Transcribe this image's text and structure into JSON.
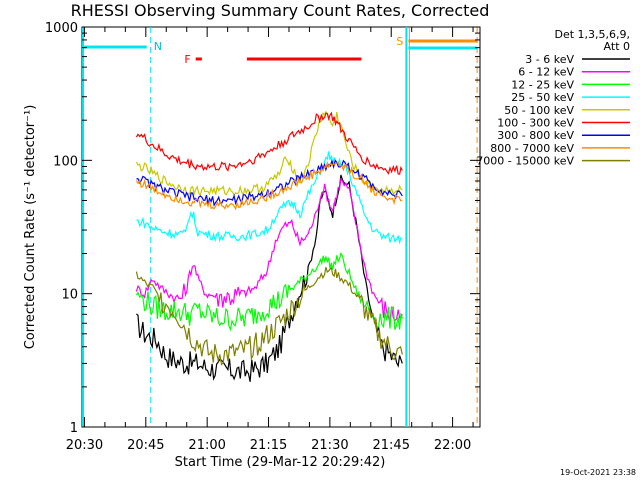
{
  "chart_data": {
    "type": "line",
    "title": "RHESSI Observing Summary Count Rates, Corrected",
    "xlabel": "Start Time (29-Mar-12 20:29:42)",
    "ylabel": "Corrected Count Rate (s⁻¹ detector⁻¹)",
    "y_scale": "log",
    "ylim": [
      1,
      1000
    ],
    "xlim_minutes": [
      -0.3,
      97
    ],
    "x_tick_labels": [
      {
        "t": 0.3,
        "label": "20:30"
      },
      {
        "t": 15.3,
        "label": "20:45"
      },
      {
        "t": 30.3,
        "label": "21:00"
      },
      {
        "t": 45.3,
        "label": "21:15"
      },
      {
        "t": 60.3,
        "label": "21:30"
      },
      {
        "t": 75.3,
        "label": "21:45"
      },
      {
        "t": 90.3,
        "label": "22:00"
      }
    ],
    "y_tick_labels": [
      {
        "v": 1,
        "label": "1"
      },
      {
        "v": 10,
        "label": "10"
      },
      {
        "v": 100,
        "label": "100"
      },
      {
        "v": 1000,
        "label": "1000"
      }
    ],
    "legend_header": [
      "Det 1,3,5,6,9,",
      "Att 0"
    ],
    "series": [
      {
        "name": "3 - 6 keV",
        "color": "#000000",
        "x": [
          13,
          15,
          18,
          20,
          22,
          25,
          28,
          30,
          33,
          35,
          38,
          40,
          42,
          45,
          48,
          50,
          52,
          55,
          57,
          58,
          59,
          60,
          61,
          62,
          63,
          65,
          67,
          69,
          71,
          73,
          75,
          77,
          78
        ],
        "y": [
          6,
          5,
          4.5,
          3.5,
          3.2,
          3,
          3,
          2.8,
          2.7,
          2.7,
          2.6,
          2.6,
          2.7,
          3,
          4,
          6,
          9,
          15,
          28,
          50,
          60,
          48,
          40,
          55,
          72,
          65,
          30,
          12,
          6,
          4,
          3.5,
          3,
          3
        ]
      },
      {
        "name": "6 - 12 keV",
        "color": "#ff00ff",
        "x": [
          13,
          15,
          17,
          19,
          21,
          23,
          25,
          26,
          27,
          28,
          30,
          33,
          36,
          39,
          42,
          45,
          47,
          49,
          51,
          52,
          53,
          55,
          57,
          58,
          59,
          60,
          61,
          62,
          63,
          65,
          67,
          69,
          71,
          73,
          75,
          77,
          78
        ],
        "y": [
          11,
          10,
          13,
          11,
          10,
          9,
          10,
          14,
          17,
          13,
          10,
          9.5,
          9.5,
          10,
          11,
          15,
          25,
          32,
          34,
          28,
          24,
          28,
          40,
          55,
          62,
          50,
          42,
          56,
          70,
          60,
          30,
          15,
          10,
          8,
          7,
          7,
          7
        ]
      },
      {
        "name": "12 - 25 keV",
        "color": "#00ff00",
        "x": [
          13,
          15,
          17,
          20,
          23,
          26,
          28,
          30,
          33,
          36,
          39,
          42,
          45,
          48,
          51,
          54,
          56,
          58,
          59,
          60,
          61,
          62,
          63,
          65,
          67,
          69,
          71,
          73,
          75,
          77,
          78
        ],
        "y": [
          10,
          9,
          8,
          7.5,
          7.5,
          7,
          7.5,
          7,
          6.5,
          6.5,
          6.5,
          7,
          8,
          9,
          11,
          13,
          15,
          17,
          19,
          17,
          16,
          18,
          19,
          14,
          10,
          8,
          7,
          6.5,
          6.5,
          6.5,
          6.5
        ]
      },
      {
        "name": "25 - 50 keV",
        "color": "#00ffff",
        "x": [
          13,
          15,
          17,
          20,
          23,
          25,
          26,
          27,
          28,
          30,
          33,
          36,
          39,
          42,
          45,
          47,
          49,
          51,
          52,
          53,
          55,
          57,
          58,
          59,
          60,
          61,
          62,
          63,
          65,
          67,
          69,
          71,
          73,
          75,
          77,
          78
        ],
        "y": [
          35,
          34,
          31,
          29,
          28,
          28,
          40,
          38,
          29,
          28,
          27,
          27,
          27,
          28,
          30,
          38,
          45,
          48,
          45,
          40,
          55,
          72,
          85,
          95,
          110,
          100,
          92,
          95,
          80,
          55,
          38,
          30,
          27,
          26,
          26,
          26
        ]
      },
      {
        "name": "50 - 100 keV",
        "color": "#c8c800",
        "x": [
          13,
          15,
          17,
          20,
          23,
          26,
          29,
          32,
          35,
          38,
          41,
          44,
          46,
          48,
          49,
          50,
          51,
          52,
          53,
          55,
          57,
          58,
          59,
          60,
          61,
          62,
          63,
          65,
          67,
          69,
          71,
          73,
          75,
          77,
          78
        ],
        "y": [
          92,
          88,
          80,
          70,
          63,
          60,
          59,
          59,
          59,
          59,
          60,
          63,
          70,
          80,
          95,
          105,
          90,
          78,
          70,
          95,
          160,
          200,
          230,
          210,
          180,
          220,
          180,
          110,
          80,
          68,
          62,
          60,
          60,
          60,
          60
        ]
      },
      {
        "name": "100 - 300 keV",
        "color": "#ff0000",
        "x": [
          13,
          15,
          17,
          20,
          23,
          26,
          29,
          32,
          35,
          38,
          41,
          44,
          47,
          50,
          53,
          55,
          57,
          59,
          60,
          61,
          62,
          63,
          65,
          67,
          69,
          71,
          73,
          75,
          77,
          78
        ],
        "y": [
          160,
          145,
          130,
          112,
          100,
          94,
          90,
          89,
          90,
          93,
          100,
          110,
          125,
          145,
          165,
          180,
          205,
          220,
          218,
          210,
          190,
          170,
          140,
          115,
          100,
          92,
          87,
          85,
          84,
          84
        ]
      },
      {
        "name": "300 - 800 keV",
        "color": "#0000ff",
        "x": [
          13,
          15,
          17,
          20,
          23,
          26,
          29,
          32,
          35,
          38,
          41,
          44,
          47,
          50,
          53,
          56,
          59,
          60,
          62,
          64,
          66,
          68,
          70,
          72,
          74,
          76,
          78
        ],
        "y": [
          75,
          70,
          65,
          60,
          56,
          53,
          51,
          50,
          50,
          51,
          53,
          56,
          61,
          67,
          74,
          82,
          90,
          94,
          95,
          92,
          85,
          76,
          68,
          62,
          58,
          55,
          54
        ]
      },
      {
        "name": "800 - 7000 keV",
        "color": "#ff8c00",
        "x": [
          13,
          15,
          17,
          20,
          23,
          26,
          29,
          32,
          35,
          38,
          41,
          44,
          47,
          50,
          53,
          56,
          59,
          60,
          62,
          64,
          66,
          68,
          70,
          72,
          74,
          76,
          78
        ],
        "y": [
          70,
          66,
          61,
          56,
          52,
          49,
          47,
          46,
          46,
          47,
          49,
          52,
          57,
          63,
          70,
          78,
          87,
          92,
          95,
          88,
          80,
          72,
          63,
          57,
          53,
          51,
          50
        ]
      },
      {
        "name": "7000 - 15000 keV",
        "color": "#808000",
        "x": [
          13,
          15,
          17,
          19,
          21,
          23,
          25,
          27,
          29,
          31,
          33,
          35,
          37,
          40,
          43,
          46,
          49,
          52,
          55,
          57,
          59,
          60,
          61,
          62,
          64,
          66,
          68,
          70,
          72,
          74,
          76,
          78
        ],
        "y": [
          14,
          12,
          11,
          9,
          8,
          7,
          5.5,
          4.5,
          4,
          3.5,
          3.5,
          3.5,
          3.6,
          3.8,
          4.3,
          5.2,
          6.5,
          8.5,
          11,
          13,
          14.5,
          15,
          14.5,
          14,
          12.5,
          10.5,
          8.5,
          6.5,
          5,
          4.2,
          3.7,
          3.5
        ]
      }
    ],
    "flags": {
      "flare_label": "F",
      "flare_intervals": [
        [
          27.5,
          29
        ],
        [
          40,
          68
        ]
      ],
      "night_label": "N",
      "saa_label": "S",
      "night_end": 16.5,
      "saa_start": 79,
      "saa_end": 96.3
    },
    "timestamp": "19-Oct-2021 23:38"
  }
}
